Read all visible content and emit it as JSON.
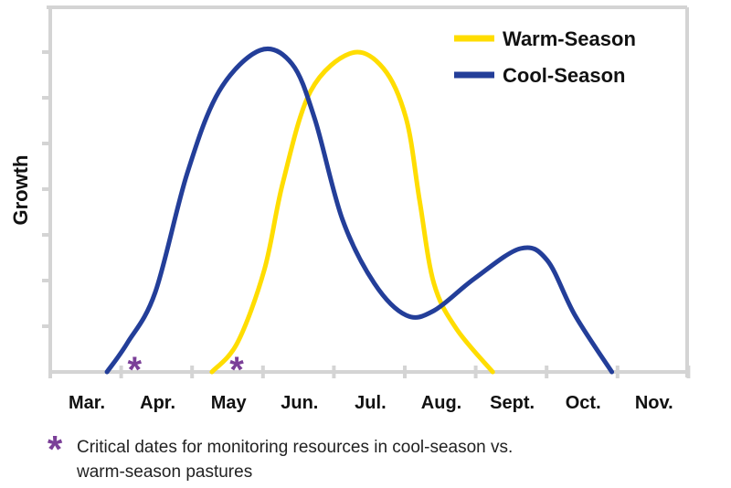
{
  "chart_data": {
    "type": "line",
    "title": "",
    "xlabel": "",
    "ylabel": "Growth",
    "x_tick_labels": [
      "Mar.",
      "Apr.",
      "May",
      "Jun.",
      "Jul.",
      "Aug.",
      "Sept.",
      "Oct.",
      "Nov."
    ],
    "xlim": [
      0,
      9
    ],
    "ylim": [
      0,
      8
    ],
    "y_ticks": 7,
    "legend_position": "top-right",
    "series": [
      {
        "name": "Warm-Season",
        "color": "#FFDD00",
        "x": [
          2.28,
          2.64,
          3.02,
          3.28,
          3.67,
          4.25,
          4.7,
          5.02,
          5.21,
          5.41,
          5.73,
          6.24
        ],
        "y": [
          0,
          0.64,
          2.24,
          4.14,
          6.14,
          6.98,
          6.64,
          5.54,
          3.74,
          1.94,
          0.94,
          0
        ]
      },
      {
        "name": "Cool-Season",
        "color": "#233E99",
        "x": [
          0.8,
          1.09,
          1.48,
          1.93,
          2.38,
          2.96,
          3.41,
          3.73,
          4.12,
          4.57,
          5.02,
          5.41,
          5.98,
          6.63,
          7.01,
          7.4,
          7.92
        ],
        "y": [
          0,
          0.64,
          1.74,
          4.34,
          6.14,
          7.04,
          6.74,
          5.54,
          3.34,
          1.94,
          1.24,
          1.34,
          2.04,
          2.7,
          2.44,
          1.24,
          0
        ]
      }
    ],
    "markers": {
      "symbol": "*",
      "color": "#7B3F98",
      "x": [
        1.19,
        2.63
      ]
    },
    "annotation": {
      "symbol": "*",
      "lines": [
        "Critical dates for monitoring resources in cool-season vs.",
        "warm-season pastures"
      ]
    }
  }
}
